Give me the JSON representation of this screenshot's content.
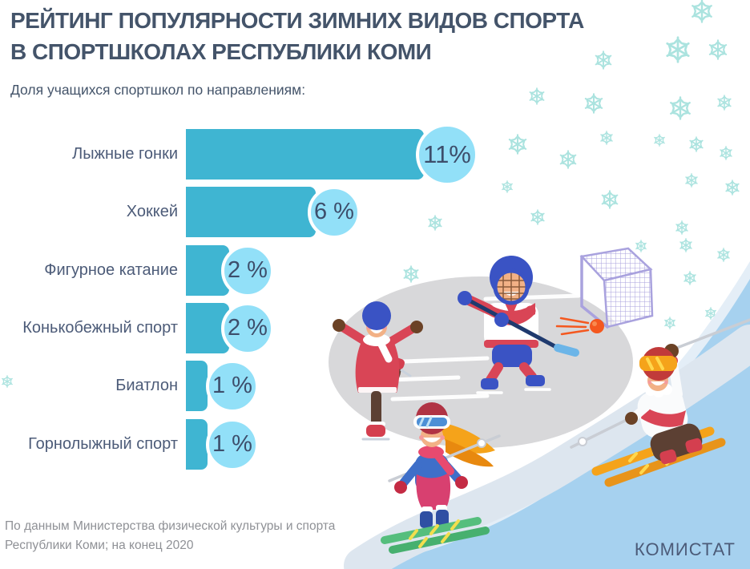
{
  "header": {
    "title_line1": "РЕЙТИНГ ПОПУЛЯРНОСТИ ЗИМНИХ ВИДОВ СПОРТА",
    "title_line2": "В СПОРТШКОЛАХ РЕСПУБЛИКИ КОМИ",
    "subtitle": "Доля учащихся спортшкол по направлениям:"
  },
  "chart_data": {
    "type": "bar",
    "orientation": "horizontal",
    "title": "Доля учащихся спортшкол по направлениям",
    "categories": [
      "Лыжные гонки",
      "Хоккей",
      "Фигурное катание",
      "Конькобежный спорт",
      "Биатлон",
      "Горнолыжный спорт"
    ],
    "values": [
      11,
      6,
      2,
      2,
      1,
      1
    ],
    "value_labels": [
      "11%",
      "6 %",
      "2 %",
      "2 %",
      "1 %",
      "1 %"
    ],
    "unit": "%",
    "xlim": [
      0,
      12
    ],
    "grid": false,
    "legend": "none",
    "bar_color": "#3FB5D2",
    "badge_color": "#92E0F8"
  },
  "footer": {
    "source_line1": "По данным Министерства физической культуры и спорта",
    "source_line2": "Республики Коми;  на конец 2020",
    "brand": "КОМИСТАТ"
  },
  "illustration": {
    "icons": [
      "snowflake-icon",
      "ice-rink",
      "figure-skater",
      "hockey-player",
      "hockey-goal",
      "puck",
      "girl-skier",
      "downhill-skier",
      "ski-slope",
      "ski-trail"
    ]
  },
  "colors": {
    "title_text": "#44546A",
    "category_text": "#4C5B78",
    "badge_text": "#3D4E6B",
    "source_text": "#8F9196",
    "snowflake": "#ABE3DF",
    "rink": "#D8D8DA",
    "slope": "#A6D1EF",
    "trail": "#DDE6EF"
  }
}
